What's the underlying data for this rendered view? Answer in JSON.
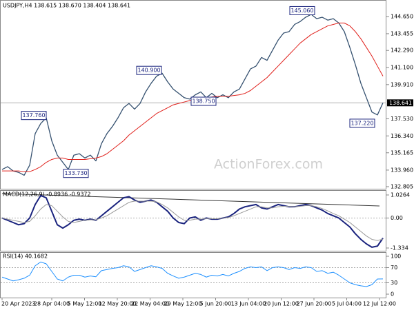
{
  "chart_data": [
    {
      "type": "line",
      "title": "USDJPY,H4 138.615 138.670 138.404 138.641",
      "watermark": "ActionForex.com",
      "ylim": [
        132.66,
        145.705
      ],
      "yticks": [
        {
          "value": 144.65,
          "label": "144.650"
        },
        143.455,
        {
          "value": 142.29,
          "label": "142.290"
        },
        {
          "value": 141.1,
          "label": "141.100"
        },
        {
          "value": 139.91,
          "label": "139.910"
        },
        {
          "value": 137.53,
          "label": "137.530"
        },
        {
          "value": 136.34,
          "label": "136.340"
        },
        135.165,
        {
          "value": 133.96,
          "label": "133.960"
        },
        132.805
      ],
      "current_price": 138.641,
      "annotations": [
        {
          "value": 145.06,
          "label": "145.060"
        },
        {
          "value": 140.9,
          "label": "140.900"
        },
        {
          "value": 138.75,
          "label": "138.750"
        },
        {
          "value": 137.76,
          "label": "137.760"
        },
        {
          "value": 137.22,
          "label": "137.220"
        },
        {
          "value": 133.73,
          "label": "133.730"
        }
      ],
      "series": [
        {
          "color": "#34506f",
          "width": 1.3,
          "values": [
            134.0,
            134.2,
            133.9,
            133.8,
            133.6,
            134.3,
            136.5,
            137.2,
            137.6,
            136.0,
            135.0,
            134.5,
            134.0,
            135.0,
            135.1,
            134.8,
            135.0,
            134.6,
            135.8,
            136.5,
            137.0,
            137.6,
            138.3,
            138.6,
            138.2,
            138.6,
            139.4,
            140.0,
            140.5,
            140.7,
            140.1,
            139.6,
            139.3,
            139.0,
            138.9,
            139.2,
            139.4,
            139.0,
            139.3,
            139.0,
            139.2,
            139.0,
            139.4,
            139.6,
            140.3,
            141.0,
            141.2,
            141.8,
            141.6,
            142.3,
            143.0,
            143.5,
            143.6,
            144.1,
            144.3,
            144.6,
            144.8,
            144.5,
            144.6,
            144.4,
            144.5,
            144.2,
            143.6,
            142.5,
            141.3,
            140.0,
            139.0,
            138.0,
            137.8,
            138.641
          ]
        },
        {
          "color": "#e0201b",
          "width": 1,
          "values": [
            133.9,
            133.9,
            133.9,
            133.9,
            133.85,
            133.85,
            134.0,
            134.2,
            134.5,
            134.7,
            134.8,
            134.8,
            134.7,
            134.7,
            134.7,
            134.7,
            134.75,
            134.8,
            134.9,
            135.1,
            135.4,
            135.7,
            136.0,
            136.4,
            136.7,
            137.0,
            137.3,
            137.6,
            137.9,
            138.1,
            138.3,
            138.5,
            138.6,
            138.7,
            138.8,
            138.9,
            139.0,
            139.0,
            139.05,
            139.1,
            139.1,
            139.1,
            139.15,
            139.2,
            139.3,
            139.5,
            139.8,
            140.1,
            140.4,
            140.8,
            141.2,
            141.6,
            142.0,
            142.4,
            142.8,
            143.1,
            143.4,
            143.6,
            143.8,
            144.0,
            144.1,
            144.2,
            144.2,
            144.0,
            143.6,
            143.1,
            142.5,
            141.9,
            141.2,
            140.5
          ]
        }
      ]
    },
    {
      "type": "line",
      "title": "MACD(12,26,9) -0.8936 -0.9372",
      "ylim": [
        -1.457,
        1.241
      ],
      "yticks": [
        1.0264,
        {
          "value": 0,
          "label": "0.00"
        },
        -1.334
      ],
      "dotted_levels": true,
      "series": [
        {
          "color": "#1a237e",
          "width": 2,
          "values": [
            0.0,
            -0.1,
            -0.2,
            -0.3,
            -0.25,
            0.0,
            0.6,
            1.0,
            0.9,
            0.3,
            -0.3,
            -0.45,
            -0.3,
            -0.1,
            -0.05,
            -0.1,
            -0.05,
            -0.1,
            0.1,
            0.3,
            0.5,
            0.7,
            0.9,
            0.95,
            0.8,
            0.7,
            0.75,
            0.8,
            0.7,
            0.5,
            0.3,
            0.0,
            -0.2,
            -0.25,
            0.0,
            0.05,
            -0.1,
            0.0,
            -0.05,
            -0.05,
            0.0,
            0.05,
            0.2,
            0.4,
            0.5,
            0.55,
            0.6,
            0.45,
            0.4,
            0.5,
            0.6,
            0.55,
            0.5,
            0.5,
            0.55,
            0.6,
            0.55,
            0.45,
            0.35,
            0.2,
            0.1,
            0.0,
            -0.2,
            -0.4,
            -0.7,
            -0.95,
            -1.15,
            -1.3,
            -1.25,
            -0.8936
          ]
        },
        {
          "color": "#9a9a9a",
          "width": 1,
          "values": [
            0.0,
            -0.05,
            -0.1,
            -0.15,
            -0.2,
            -0.15,
            0.1,
            0.4,
            0.6,
            0.55,
            0.3,
            0.05,
            -0.15,
            -0.2,
            -0.15,
            -0.1,
            -0.08,
            -0.08,
            0.0,
            0.1,
            0.25,
            0.4,
            0.55,
            0.7,
            0.75,
            0.75,
            0.75,
            0.75,
            0.72,
            0.6,
            0.45,
            0.25,
            0.05,
            -0.1,
            -0.1,
            -0.05,
            -0.05,
            -0.03,
            -0.03,
            -0.03,
            0.0,
            0.02,
            0.1,
            0.2,
            0.3,
            0.4,
            0.5,
            0.5,
            0.45,
            0.45,
            0.5,
            0.52,
            0.52,
            0.5,
            0.52,
            0.55,
            0.55,
            0.5,
            0.42,
            0.32,
            0.2,
            0.1,
            -0.05,
            -0.2,
            -0.4,
            -0.6,
            -0.8,
            -0.95,
            -1.0,
            -0.9372
          ]
        }
      ]
    },
    {
      "type": "line",
      "title": "RSI(14) 40.1682",
      "ylim": [
        -9.1,
        110.9
      ],
      "yticks": [
        100,
        70,
        30,
        0
      ],
      "dotted_levels": true,
      "x_tick_labels": [
        "20 Apr 2023",
        "28 Apr 04:00",
        "5 May 12:00",
        "12 May 20:00",
        "22 May 04:00",
        "29 May 12:00",
        "5 Jun 20:00",
        "13 Jun 04:00",
        "20 Jun 12:00",
        "27 Jun 20:00",
        "5 Jul 04:00",
        "12 Jul 12:00"
      ],
      "series": [
        {
          "color": "#1e90ff",
          "width": 1,
          "values": [
            45,
            40,
            35,
            38,
            42,
            50,
            75,
            85,
            80,
            60,
            40,
            35,
            45,
            50,
            50,
            45,
            48,
            46,
            62,
            65,
            68,
            70,
            75,
            72,
            60,
            65,
            70,
            75,
            72,
            68,
            55,
            48,
            42,
            45,
            50,
            55,
            52,
            45,
            50,
            48,
            52,
            48,
            55,
            60,
            68,
            72,
            70,
            72,
            62,
            70,
            72,
            70,
            65,
            70,
            68,
            72,
            70,
            60,
            62,
            55,
            58,
            50,
            40,
            30,
            25,
            22,
            20,
            25,
            40,
            40.1682
          ]
        }
      ]
    }
  ]
}
